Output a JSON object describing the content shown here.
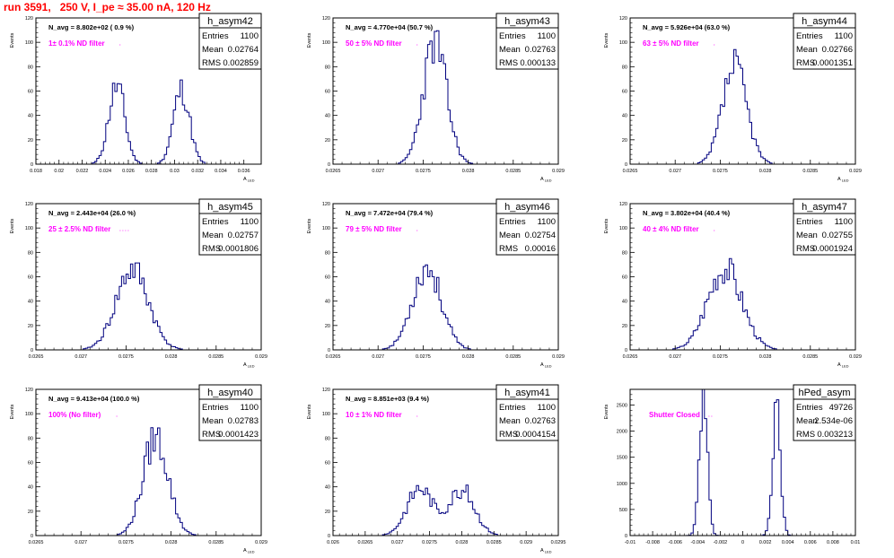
{
  "page": {
    "title": "run 3591,   250 V, I_pe ≈ 35.00 nA, 120 Hz",
    "colors": {
      "title": "#ff0000",
      "histogram": "#00007f",
      "annotation": "#ff00ff",
      "frame": "#000000"
    }
  },
  "chart_data": [
    {
      "type": "histogram",
      "stats_title": "h_asym42",
      "stats": {
        "entries": "1100",
        "mean": "0.02764",
        "rms": "0.002859"
      },
      "navg": "N_avg = 8.802e+02 ( 0.9 %)",
      "filter": "1± 0.1% ND filter",
      "ylabel": "Events",
      "xlabel": "A_LED",
      "xlim": [
        0.018,
        0.0375
      ],
      "ylim": [
        0,
        120
      ],
      "xticks": [
        0.018,
        0.02,
        0.022,
        0.024,
        0.026,
        0.028,
        0.03,
        0.032,
        0.034,
        0.036
      ],
      "xtick_labels": [
        "0.018",
        "0.02",
        "0.022",
        "0.024",
        "0.026",
        "0.028",
        "0.03",
        "0.032",
        "0.034",
        "0.036"
      ],
      "yticks": [
        0,
        20,
        40,
        60,
        80,
        100,
        120
      ],
      "peaks": [
        {
          "center": 0.025,
          "height": 66,
          "width": 0.0007
        },
        {
          "center": 0.0306,
          "height": 63,
          "width": 0.0007
        }
      ],
      "seed": 11
    },
    {
      "type": "histogram",
      "stats_title": "h_asym43",
      "stats": {
        "entries": "1100",
        "mean": "0.02763",
        "rms": "0.000133"
      },
      "navg": "N_avg = 4.770e+04 (50.7 %)",
      "filter": "50 ± 5% ND filter",
      "ylabel": "Events",
      "xlabel": "A_LED",
      "xlim": [
        0.0265,
        0.029
      ],
      "ylim": [
        0,
        120
      ],
      "xticks": [
        0.0265,
        0.027,
        0.0275,
        0.028,
        0.0285,
        0.029
      ],
      "xtick_labels": [
        "0.0265",
        "0.027",
        "0.0275",
        "0.028",
        "0.0285",
        "0.029"
      ],
      "yticks": [
        0,
        20,
        40,
        60,
        80,
        100,
        120
      ],
      "peaks": [
        {
          "center": 0.02763,
          "height": 102,
          "width": 0.00013
        }
      ],
      "seed": 23
    },
    {
      "type": "histogram",
      "stats_title": "h_asym44",
      "stats": {
        "entries": "1100",
        "mean": "0.02766",
        "rms": "0.0001351"
      },
      "navg": "N_avg = 5.926e+04 (63.0 %)",
      "filter": "63 ± 5% ND filter",
      "ylabel": "Events",
      "xlabel": "A_LED",
      "xlim": [
        0.0265,
        0.029
      ],
      "ylim": [
        0,
        120
      ],
      "xticks": [
        0.0265,
        0.027,
        0.0275,
        0.028,
        0.0285,
        0.029
      ],
      "xtick_labels": [
        "0.0265",
        "0.027",
        "0.0275",
        "0.028",
        "0.0285",
        "0.029"
      ],
      "yticks": [
        0,
        20,
        40,
        60,
        80,
        100,
        120
      ],
      "peaks": [
        {
          "center": 0.02766,
          "height": 82,
          "width": 0.000135
        }
      ],
      "seed": 37
    },
    {
      "type": "histogram",
      "stats_title": "h_asym45",
      "stats": {
        "entries": "1100",
        "mean": "0.02757",
        "rms": "0.0001806"
      },
      "navg": "N_avg = 2.443e+04 (26.0 %)",
      "filter": "25 ± 2.5% ND filter",
      "ylabel": "Events",
      "xlabel": "A_LED",
      "xlim": [
        0.0265,
        0.029
      ],
      "ylim": [
        0,
        120
      ],
      "xticks": [
        0.0265,
        0.027,
        0.0275,
        0.028,
        0.0285,
        0.029
      ],
      "xtick_labels": [
        "0.0265",
        "0.027",
        "0.0275",
        "0.028",
        "0.0285",
        "0.029"
      ],
      "yticks": [
        0,
        20,
        40,
        60,
        80,
        100,
        120
      ],
      "peaks": [
        {
          "center": 0.02757,
          "height": 68,
          "width": 0.00018
        }
      ],
      "seed": 41
    },
    {
      "type": "histogram",
      "stats_title": "h_asym46",
      "stats": {
        "entries": "1100",
        "mean": "0.02754",
        "rms": "0.00016"
      },
      "navg": "N_avg = 7.472e+04 (79.4 %)",
      "filter": "79 ± 5% ND filter",
      "ylabel": "Events",
      "xlabel": "A_LED",
      "xlim": [
        0.0265,
        0.029
      ],
      "ylim": [
        0,
        120
      ],
      "xticks": [
        0.0265,
        0.027,
        0.0275,
        0.028,
        0.0285,
        0.029
      ],
      "xtick_labels": [
        "0.0265",
        "0.027",
        "0.0275",
        "0.028",
        "0.0285",
        "0.029"
      ],
      "yticks": [
        0,
        20,
        40,
        60,
        80,
        100,
        120
      ],
      "peaks": [
        {
          "center": 0.02754,
          "height": 70,
          "width": 0.00016
        }
      ],
      "seed": 53
    },
    {
      "type": "histogram",
      "stats_title": "h_asym47",
      "stats": {
        "entries": "1100",
        "mean": "0.02755",
        "rms": "0.0001924"
      },
      "navg": "N_avg = 3.802e+04 (40.4 %)",
      "filter": "40 ± 4% ND filter",
      "ylabel": "Events",
      "xlabel": "A_LED",
      "xlim": [
        0.0265,
        0.029
      ],
      "ylim": [
        0,
        120
      ],
      "xticks": [
        0.0265,
        0.027,
        0.0275,
        0.028,
        0.0285,
        0.029
      ],
      "xtick_labels": [
        "0.0265",
        "0.027",
        "0.0275",
        "0.028",
        "0.0285",
        "0.029"
      ],
      "yticks": [
        0,
        20,
        40,
        60,
        80,
        100,
        120
      ],
      "peaks": [
        {
          "center": 0.02755,
          "height": 70,
          "width": 0.00019
        }
      ],
      "seed": 67
    },
    {
      "type": "histogram",
      "stats_title": "h_asym40",
      "stats": {
        "entries": "1100",
        "mean": "0.02783",
        "rms": "0.0001423"
      },
      "navg": "N_avg = 9.413e+04 (100.0 %)",
      "filter": "100% (No filter)",
      "ylabel": "Events",
      "xlabel": "A_LED",
      "xlim": [
        0.0265,
        0.029
      ],
      "ylim": [
        0,
        120
      ],
      "xticks": [
        0.0265,
        0.027,
        0.0275,
        0.028,
        0.0285,
        0.029
      ],
      "xtick_labels": [
        "0.0265",
        "0.027",
        "0.0275",
        "0.028",
        "0.0285",
        "0.029"
      ],
      "yticks": [
        0,
        20,
        40,
        60,
        80,
        100,
        120
      ],
      "peaks": [
        {
          "center": 0.02783,
          "height": 83,
          "width": 0.00014
        }
      ],
      "seed": 79
    },
    {
      "type": "histogram",
      "stats_title": "h_asym41",
      "stats": {
        "entries": "1100",
        "mean": "0.02763",
        "rms": "0.0004154"
      },
      "navg": "N_avg = 8.851e+03 (9.4 %)",
      "filter": "10 ± 1% ND filter",
      "ylabel": "Events",
      "xlabel": "A_LED",
      "xlim": [
        0.026,
        0.0295
      ],
      "ylim": [
        0,
        120
      ],
      "xticks": [
        0.026,
        0.0265,
        0.027,
        0.0275,
        0.028,
        0.0285,
        0.029,
        0.0295
      ],
      "xtick_labels": [
        "0.026",
        "0.0265",
        "0.027",
        "0.0275",
        "0.028",
        "0.0285",
        "0.029",
        "0.0295"
      ],
      "yticks": [
        0,
        20,
        40,
        60,
        80,
        100,
        120
      ],
      "peaks": [
        {
          "center": 0.02735,
          "height": 40,
          "width": 0.0002
        },
        {
          "center": 0.028,
          "height": 39,
          "width": 0.0002
        }
      ],
      "seed": 83
    },
    {
      "type": "histogram",
      "stats_title": "hPed_asym",
      "stats": {
        "entries": "49726",
        "mean": "2.534e-06",
        "rms": "0.003213"
      },
      "navg": "",
      "filter": "Shutter Closed",
      "ylabel": "Events",
      "xlabel": "",
      "xlim": [
        -0.01,
        0.01
      ],
      "ylim": [
        0,
        2800
      ],
      "xticks": [
        -0.01,
        -0.008,
        -0.006,
        -0.004,
        -0.002,
        0,
        0.002,
        0.004,
        0.006,
        0.008,
        0.01
      ],
      "xtick_labels": [
        "-0.01",
        "-0.008",
        "-0.006",
        "-0.004",
        "-0.002",
        "0",
        "0.002",
        "0.004",
        "0.006",
        "0.008",
        "0.01"
      ],
      "yticks": [
        0,
        500,
        1000,
        1500,
        2000,
        2500
      ],
      "peaks": [
        {
          "center": -0.0035,
          "height": 2750,
          "width": 0.00035
        },
        {
          "center": 0.003,
          "height": 2450,
          "width": 0.00035
        }
      ],
      "seed": 97
    }
  ]
}
